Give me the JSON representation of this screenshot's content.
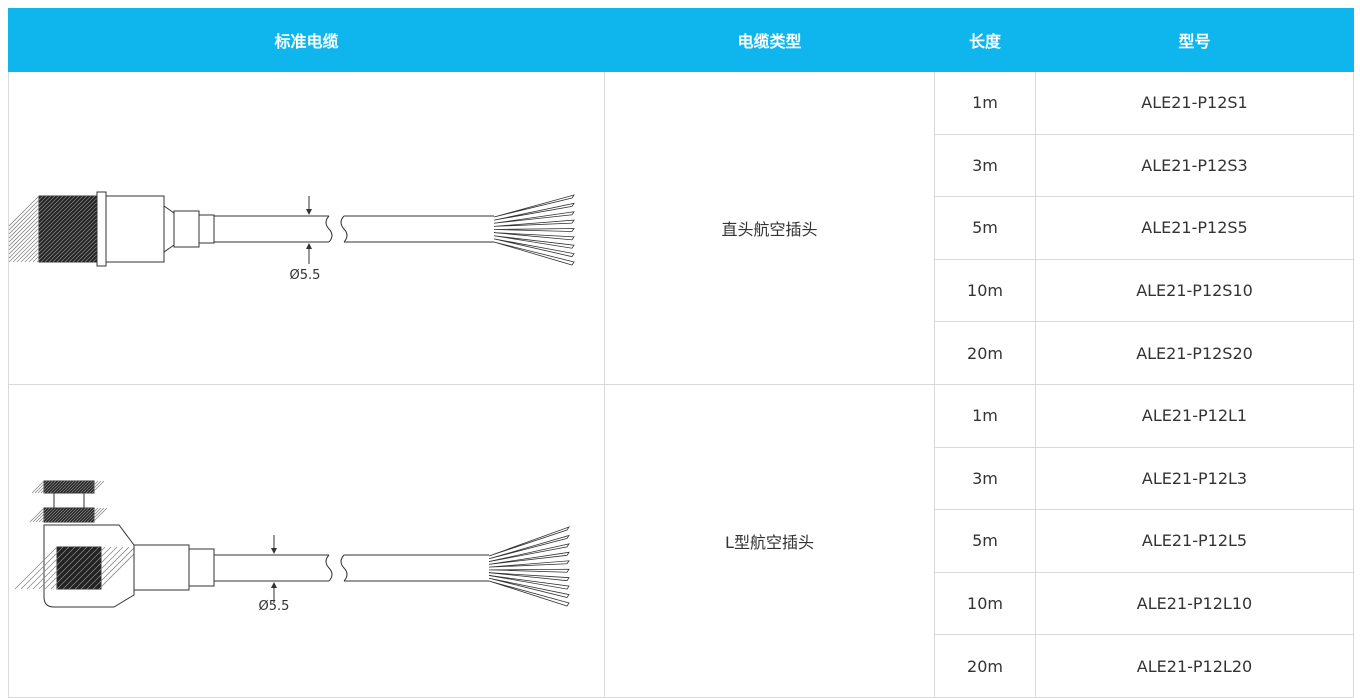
{
  "header": [
    "标准电缆",
    "电缆类型",
    "长度",
    "型号"
  ],
  "groups": [
    {
      "type": "直头航空插头",
      "diameter": "Ø5.5",
      "rows": [
        {
          "length": "1m",
          "model": "ALE21-P12S1"
        },
        {
          "length": "3m",
          "model": "ALE21-P12S3"
        },
        {
          "length": "5m",
          "model": "ALE21-P12S5"
        },
        {
          "length": "10m",
          "model": "ALE21-P12S10"
        },
        {
          "length": "20m",
          "model": "ALE21-P12S20"
        }
      ]
    },
    {
      "type": "L型航空插头",
      "diameter": "Ø5.5",
      "rows": [
        {
          "length": "1m",
          "model": "ALE21-P12L1"
        },
        {
          "length": "3m",
          "model": "ALE21-P12L3"
        },
        {
          "length": "5m",
          "model": "ALE21-P12L5"
        },
        {
          "length": "10m",
          "model": "ALE21-P12L10"
        },
        {
          "length": "20m",
          "model": "ALE21-P12L20"
        }
      ]
    }
  ]
}
